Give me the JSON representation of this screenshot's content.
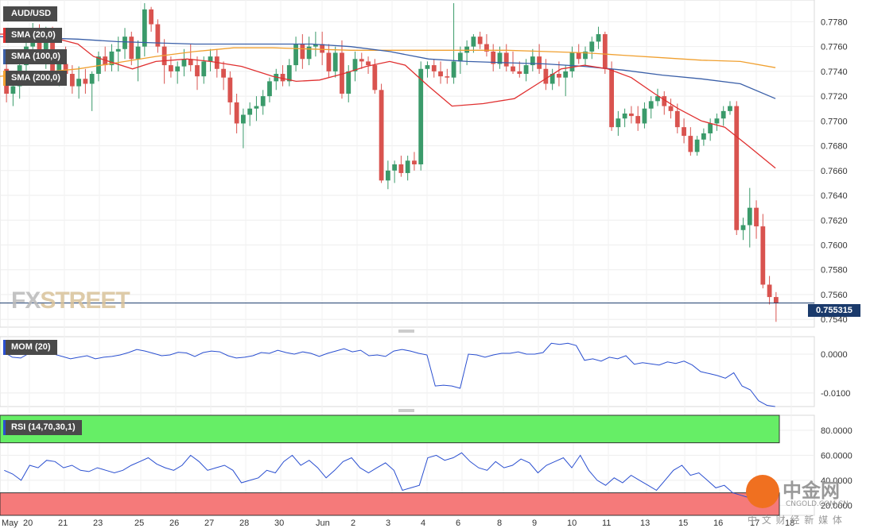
{
  "header": {
    "symbol": "AUD/USD"
  },
  "watermark": {
    "fx": "FX",
    "street": "STREET"
  },
  "legend": {
    "sma20": {
      "label": "SMA (20,0)",
      "color": "#e03030"
    },
    "sma100": {
      "label": "SMA (100,0)",
      "color": "#3a5fa8"
    },
    "sma200": {
      "label": "SMA (200,0)",
      "color": "#f0a030"
    }
  },
  "price_tag": "0.755315",
  "mom_label": "MOM (20)",
  "rsi_label": "RSI (14,70,30,1)",
  "cngold": {
    "name": "中金网",
    "url": "CNGOLD.COM.CN",
    "slogan": "中 文 财 经 新 媒 体"
  },
  "colors": {
    "up": "#3a9a6a",
    "down": "#d9534f",
    "mom": "#2a4fd0",
    "rsi": "#2a4fd0",
    "rsi_ob": "#66ee66",
    "rsi_os": "#f57a7a",
    "price_line": "#1a3a6b"
  },
  "chart_data": [
    {
      "type": "candlestick",
      "title": "AUD/USD",
      "x_labels": [
        "May",
        "20",
        "21",
        "23",
        "25",
        "26",
        "27",
        "28",
        "30",
        "Jun",
        "2",
        "3",
        "4",
        "6",
        "8",
        "9",
        "10",
        "11",
        "13",
        "15",
        "16",
        "17",
        "18"
      ],
      "ylim": [
        0.7535,
        0.7795
      ],
      "y_ticks": [
        "0.7540",
        "0.7560",
        "0.7580",
        "0.7600",
        "0.7620",
        "0.7640",
        "0.7660",
        "0.7680",
        "0.7700",
        "0.7720",
        "0.7740",
        "0.7760",
        "0.7780"
      ],
      "current_price": 0.755315,
      "candles": [
        [
          0.7742,
          0.7748,
          0.7715,
          0.7722
        ],
        [
          0.7722,
          0.7738,
          0.7712,
          0.7728
        ],
        [
          0.7728,
          0.7752,
          0.7718,
          0.7745
        ],
        [
          0.7745,
          0.7768,
          0.773,
          0.776
        ],
        [
          0.776,
          0.7779,
          0.775,
          0.7772
        ],
        [
          0.7772,
          0.7778,
          0.7748,
          0.7752
        ],
        [
          0.7752,
          0.7776,
          0.7742,
          0.777
        ],
        [
          0.777,
          0.7776,
          0.7738,
          0.774
        ],
        [
          0.774,
          0.7752,
          0.7728,
          0.7746
        ],
        [
          0.7746,
          0.776,
          0.7732,
          0.7738
        ],
        [
          0.7738,
          0.7745,
          0.7722,
          0.7728
        ],
        [
          0.7728,
          0.7744,
          0.7718,
          0.7734
        ],
        [
          0.7734,
          0.7742,
          0.7722,
          0.773
        ],
        [
          0.773,
          0.774,
          0.7708,
          0.7738
        ],
        [
          0.7738,
          0.7756,
          0.7732,
          0.7752
        ],
        [
          0.7752,
          0.776,
          0.774,
          0.7745
        ],
        [
          0.7745,
          0.7762,
          0.774,
          0.7756
        ],
        [
          0.7756,
          0.7768,
          0.774,
          0.7758
        ],
        [
          0.7758,
          0.7775,
          0.775,
          0.7768
        ],
        [
          0.7768,
          0.7772,
          0.7745,
          0.775
        ],
        [
          0.775,
          0.7765,
          0.7732,
          0.776
        ],
        [
          0.776,
          0.7795,
          0.7752,
          0.779
        ],
        [
          0.779,
          0.7792,
          0.7772,
          0.7778
        ],
        [
          0.7778,
          0.7782,
          0.7755,
          0.776
        ],
        [
          0.776,
          0.7766,
          0.773,
          0.7745
        ],
        [
          0.7745,
          0.7752,
          0.7735,
          0.774
        ],
        [
          0.774,
          0.7748,
          0.773,
          0.7744
        ],
        [
          0.7744,
          0.7758,
          0.7736,
          0.775
        ],
        [
          0.775,
          0.7762,
          0.774,
          0.7745
        ],
        [
          0.7745,
          0.7752,
          0.7725,
          0.7736
        ],
        [
          0.7736,
          0.7752,
          0.773,
          0.7748
        ],
        [
          0.7748,
          0.7758,
          0.774,
          0.7752
        ],
        [
          0.7752,
          0.7758,
          0.7735,
          0.7742
        ],
        [
          0.7742,
          0.7748,
          0.7725,
          0.7735
        ],
        [
          0.7735,
          0.774,
          0.7705,
          0.7715
        ],
        [
          0.7715,
          0.7722,
          0.769,
          0.7698
        ],
        [
          0.7698,
          0.771,
          0.7678,
          0.7705
        ],
        [
          0.7705,
          0.7715,
          0.7696,
          0.771
        ],
        [
          0.771,
          0.772,
          0.77,
          0.7712
        ],
        [
          0.7712,
          0.7725,
          0.7705,
          0.772
        ],
        [
          0.772,
          0.7735,
          0.7715,
          0.7732
        ],
        [
          0.7732,
          0.7742,
          0.7725,
          0.7738
        ],
        [
          0.7738,
          0.7745,
          0.7728,
          0.7732
        ],
        [
          0.7732,
          0.775,
          0.7728,
          0.7745
        ],
        [
          0.7745,
          0.7768,
          0.774,
          0.7762
        ],
        [
          0.7762,
          0.777,
          0.7742,
          0.775
        ],
        [
          0.775,
          0.7768,
          0.7745,
          0.776
        ],
        [
          0.776,
          0.7772,
          0.7752,
          0.7762
        ],
        [
          0.7762,
          0.7772,
          0.7745,
          0.7755
        ],
        [
          0.7755,
          0.7762,
          0.7735,
          0.774
        ],
        [
          0.774,
          0.776,
          0.7735,
          0.7755
        ],
        [
          0.7755,
          0.7765,
          0.7718,
          0.7722
        ],
        [
          0.7722,
          0.7745,
          0.7715,
          0.774
        ],
        [
          0.774,
          0.7756,
          0.7732,
          0.775
        ],
        [
          0.775,
          0.7755,
          0.7742,
          0.7748
        ],
        [
          0.7748,
          0.7752,
          0.7738,
          0.7745
        ],
        [
          0.7745,
          0.775,
          0.7722,
          0.7725
        ],
        [
          0.7725,
          0.773,
          0.765,
          0.7652
        ],
        [
          0.7652,
          0.7668,
          0.7645,
          0.766
        ],
        [
          0.766,
          0.7668,
          0.765,
          0.7665
        ],
        [
          0.7665,
          0.7672,
          0.7655,
          0.7658
        ],
        [
          0.7658,
          0.7672,
          0.7652,
          0.7668
        ],
        [
          0.7668,
          0.7675,
          0.766,
          0.7665
        ],
        [
          0.7665,
          0.7748,
          0.766,
          0.7742
        ],
        [
          0.7742,
          0.7748,
          0.7735,
          0.7745
        ],
        [
          0.7745,
          0.775,
          0.7735,
          0.774
        ],
        [
          0.774,
          0.7748,
          0.773,
          0.7736
        ],
        [
          0.7736,
          0.7742,
          0.773,
          0.7735
        ],
        [
          0.7735,
          0.7795,
          0.773,
          0.7748
        ],
        [
          0.7748,
          0.776,
          0.7738,
          0.7755
        ],
        [
          0.7755,
          0.7765,
          0.7745,
          0.776
        ],
        [
          0.776,
          0.777,
          0.7755,
          0.7768
        ],
        [
          0.7768,
          0.7772,
          0.7758,
          0.7762
        ],
        [
          0.7762,
          0.777,
          0.7752,
          0.7756
        ],
        [
          0.7756,
          0.7762,
          0.774,
          0.7746
        ],
        [
          0.7746,
          0.776,
          0.7742,
          0.7755
        ],
        [
          0.7755,
          0.7762,
          0.774,
          0.7744
        ],
        [
          0.7744,
          0.7756,
          0.7738,
          0.774
        ],
        [
          0.774,
          0.7748,
          0.7735,
          0.7738
        ],
        [
          0.7738,
          0.775,
          0.7732,
          0.7745
        ],
        [
          0.7745,
          0.7758,
          0.774,
          0.7752
        ],
        [
          0.7752,
          0.7762,
          0.7738,
          0.7742
        ],
        [
          0.7742,
          0.775,
          0.7725,
          0.773
        ],
        [
          0.773,
          0.7742,
          0.7725,
          0.7738
        ],
        [
          0.7738,
          0.7748,
          0.7728,
          0.7735
        ],
        [
          0.7735,
          0.7745,
          0.772,
          0.774
        ],
        [
          0.774,
          0.776,
          0.7735,
          0.7755
        ],
        [
          0.7755,
          0.7762,
          0.7746,
          0.775
        ],
        [
          0.775,
          0.776,
          0.7745,
          0.7756
        ],
        [
          0.7756,
          0.7768,
          0.775,
          0.7764
        ],
        [
          0.7764,
          0.7776,
          0.7758,
          0.777
        ],
        [
          0.777,
          0.7772,
          0.7738,
          0.7742
        ],
        [
          0.7742,
          0.7748,
          0.7692,
          0.7695
        ],
        [
          0.7695,
          0.7708,
          0.7688,
          0.7702
        ],
        [
          0.7702,
          0.771,
          0.7695,
          0.7706
        ],
        [
          0.7706,
          0.7712,
          0.7698,
          0.7704
        ],
        [
          0.7704,
          0.7712,
          0.7692,
          0.7698
        ],
        [
          0.7698,
          0.7715,
          0.7694,
          0.771
        ],
        [
          0.771,
          0.772,
          0.7702,
          0.7716
        ],
        [
          0.7716,
          0.7726,
          0.7712,
          0.772
        ],
        [
          0.772,
          0.7724,
          0.7705,
          0.7712
        ],
        [
          0.7712,
          0.7718,
          0.7702,
          0.7708
        ],
        [
          0.7708,
          0.7714,
          0.769,
          0.7695
        ],
        [
          0.7695,
          0.7702,
          0.7682,
          0.7688
        ],
        [
          0.7688,
          0.7695,
          0.7672,
          0.7675
        ],
        [
          0.7675,
          0.7688,
          0.7672,
          0.7685
        ],
        [
          0.7685,
          0.7694,
          0.768,
          0.769
        ],
        [
          0.769,
          0.7702,
          0.7684,
          0.7698
        ],
        [
          0.7698,
          0.7706,
          0.7692,
          0.7702
        ],
        [
          0.7702,
          0.7712,
          0.7696,
          0.7708
        ],
        [
          0.7708,
          0.7716,
          0.7705,
          0.7712
        ],
        [
          0.7712,
          0.7716,
          0.7608,
          0.7612
        ],
        [
          0.7612,
          0.7622,
          0.7604,
          0.7616
        ],
        [
          0.7616,
          0.7646,
          0.7598,
          0.763
        ],
        [
          0.763,
          0.7636,
          0.7605,
          0.7615
        ],
        [
          0.7615,
          0.7625,
          0.7565,
          0.7568
        ],
        [
          0.7568,
          0.7575,
          0.7552,
          0.7558
        ],
        [
          0.7558,
          0.7562,
          0.7538,
          0.7553
        ]
      ],
      "sma20": [
        [
          0,
          0.777
        ],
        [
          0.05,
          0.777
        ],
        [
          0.1,
          0.7762
        ],
        [
          0.12,
          0.7752
        ],
        [
          0.14,
          0.7748
        ],
        [
          0.17,
          0.7742
        ],
        [
          0.2,
          0.7748
        ],
        [
          0.24,
          0.775
        ],
        [
          0.27,
          0.7748
        ],
        [
          0.31,
          0.7744
        ],
        [
          0.35,
          0.7736
        ],
        [
          0.38,
          0.7732
        ],
        [
          0.41,
          0.7733
        ],
        [
          0.44,
          0.7738
        ],
        [
          0.47,
          0.7744
        ],
        [
          0.5,
          0.7748
        ],
        [
          0.52,
          0.7745
        ],
        [
          0.55,
          0.7728
        ],
        [
          0.58,
          0.7712
        ],
        [
          0.62,
          0.7714
        ],
        [
          0.66,
          0.7718
        ],
        [
          0.69,
          0.773
        ],
        [
          0.72,
          0.7742
        ],
        [
          0.75,
          0.7745
        ],
        [
          0.78,
          0.7742
        ],
        [
          0.81,
          0.7735
        ],
        [
          0.84,
          0.7722
        ],
        [
          0.87,
          0.771
        ],
        [
          0.9,
          0.77
        ],
        [
          0.93,
          0.7695
        ],
        [
          0.96,
          0.768
        ],
        [
          0.995,
          0.7662
        ]
      ],
      "sma100": [
        [
          0,
          0.7768
        ],
        [
          0.05,
          0.7767
        ],
        [
          0.1,
          0.7766
        ],
        [
          0.15,
          0.7764
        ],
        [
          0.2,
          0.7763
        ],
        [
          0.25,
          0.7762
        ],
        [
          0.3,
          0.7762
        ],
        [
          0.35,
          0.7762
        ],
        [
          0.4,
          0.7762
        ],
        [
          0.45,
          0.776
        ],
        [
          0.5,
          0.7756
        ],
        [
          0.55,
          0.775
        ],
        [
          0.6,
          0.7748
        ],
        [
          0.65,
          0.7747
        ],
        [
          0.7,
          0.7746
        ],
        [
          0.75,
          0.7744
        ],
        [
          0.8,
          0.7741
        ],
        [
          0.85,
          0.7737
        ],
        [
          0.9,
          0.7734
        ],
        [
          0.95,
          0.773
        ],
        [
          0.995,
          0.7718
        ]
      ],
      "sma200": [
        [
          0,
          0.7736
        ],
        [
          0.05,
          0.7739
        ],
        [
          0.1,
          0.7742
        ],
        [
          0.15,
          0.7747
        ],
        [
          0.2,
          0.7752
        ],
        [
          0.25,
          0.7756
        ],
        [
          0.3,
          0.7759
        ],
        [
          0.35,
          0.7759
        ],
        [
          0.4,
          0.7758
        ],
        [
          0.45,
          0.7757
        ],
        [
          0.5,
          0.7757
        ],
        [
          0.55,
          0.7757
        ],
        [
          0.6,
          0.7757
        ],
        [
          0.65,
          0.7757
        ],
        [
          0.7,
          0.7756
        ],
        [
          0.75,
          0.7755
        ],
        [
          0.8,
          0.7753
        ],
        [
          0.85,
          0.7751
        ],
        [
          0.9,
          0.7749
        ],
        [
          0.95,
          0.7748
        ],
        [
          0.995,
          0.7743
        ]
      ]
    },
    {
      "type": "line",
      "title": "MOM (20)",
      "ylim": [
        -0.0135,
        0.0045
      ],
      "y_ticks": [
        "0.0000",
        "-0.0100"
      ],
      "values": [
        0.0005,
        -0.0008,
        -0.001,
        0.0002,
        0.0012,
        0.0006,
        0.0,
        -0.0006,
        -0.0012,
        -0.0008,
        -0.0004,
        -0.0012,
        -0.0008,
        -0.0006,
        -0.0002,
        0.0004,
        0.0012,
        0.0008,
        0.0002,
        -0.0004,
        -0.0002,
        0.0005,
        0.0003,
        -0.0006,
        0.0004,
        0.0008,
        0.0006,
        -0.0004,
        -0.001,
        -0.0008,
        -0.0004,
        0.0004,
        0.0002,
        0.001,
        0.0004,
        0.0,
        0.0006,
        0.0002,
        -0.0006,
        0.0002,
        0.0008,
        0.0014,
        0.0006,
        0.001,
        -0.0004,
        -0.0002,
        -0.0006,
        0.0008,
        0.0012,
        0.0008,
        0.0002,
        -0.0002,
        -0.0082,
        -0.008,
        -0.0082,
        -0.0088,
        0.0,
        -0.0002,
        -0.0008,
        -0.0002,
        0.0002,
        0.0002,
        0.0006,
        0.0,
        0.0,
        0.0004,
        0.0028,
        0.0025,
        0.0028,
        0.0022,
        -0.0016,
        -0.0012,
        -0.0018,
        -0.0008,
        -0.0012,
        -0.0004,
        -0.0026,
        -0.0022,
        -0.0025,
        -0.0028,
        -0.002,
        -0.0024,
        -0.0018,
        -0.0028,
        -0.0045,
        -0.005,
        -0.0055,
        -0.0062,
        -0.0048,
        -0.0082,
        -0.0092,
        -0.012,
        -0.0132,
        -0.0135
      ]
    },
    {
      "type": "line",
      "title": "RSI (14,70,30,1)",
      "ylim": [
        12,
        92
      ],
      "y_ticks": [
        "80.0000",
        "60.0000",
        "40.0000",
        "20.0000"
      ],
      "overbought": 70,
      "oversold": 30,
      "values": [
        48,
        45,
        40,
        52,
        50,
        56,
        55,
        50,
        52,
        48,
        47,
        50,
        48,
        46,
        48,
        52,
        55,
        58,
        53,
        50,
        48,
        52,
        60,
        55,
        48,
        50,
        52,
        48,
        38,
        40,
        42,
        48,
        46,
        55,
        60,
        52,
        56,
        50,
        42,
        48,
        55,
        58,
        50,
        46,
        50,
        54,
        48,
        32,
        34,
        36,
        58,
        60,
        56,
        58,
        62,
        55,
        50,
        48,
        55,
        50,
        52,
        57,
        54,
        46,
        52,
        55,
        58,
        50,
        60,
        48,
        40,
        36,
        42,
        38,
        44,
        40,
        36,
        32,
        40,
        48,
        52,
        44,
        46,
        40,
        34,
        36,
        30,
        28,
        26,
        24,
        27,
        26
      ]
    }
  ]
}
